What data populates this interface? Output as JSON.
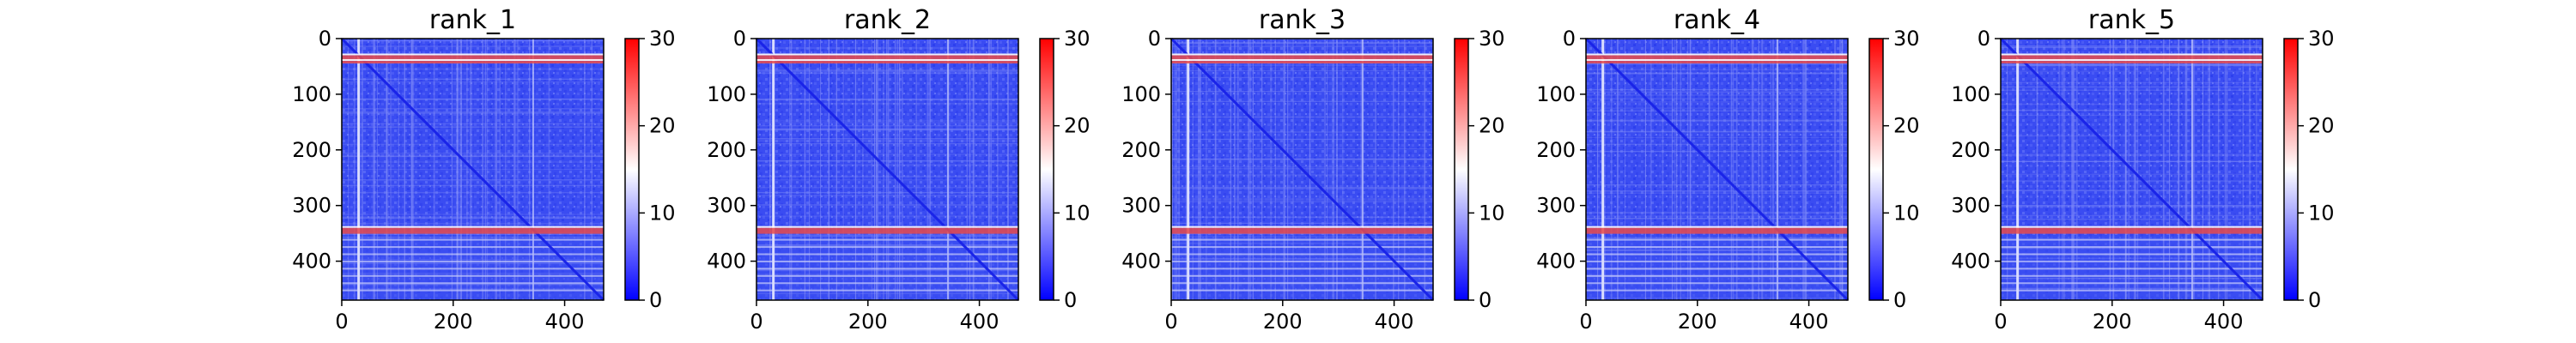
{
  "chart_data": [
    {
      "type": "heatmap",
      "title": "rank_1",
      "x_ticks": [
        0,
        200,
        400
      ],
      "y_ticks": [
        0,
        100,
        200,
        300,
        400
      ],
      "xlim": [
        0,
        470
      ],
      "ylim": [
        470,
        0
      ],
      "colorbar_ticks": [
        0,
        10,
        20,
        30
      ],
      "colorbar_range": [
        0,
        30
      ],
      "colormap": [
        "#0000ff",
        "#ffffff",
        "#ff0000"
      ]
    },
    {
      "type": "heatmap",
      "title": "rank_2",
      "x_ticks": [
        0,
        200,
        400
      ],
      "y_ticks": [
        0,
        100,
        200,
        300,
        400
      ],
      "xlim": [
        0,
        470
      ],
      "ylim": [
        470,
        0
      ],
      "colorbar_ticks": [
        0,
        10,
        20,
        30
      ],
      "colorbar_range": [
        0,
        30
      ],
      "colormap": [
        "#0000ff",
        "#ffffff",
        "#ff0000"
      ]
    },
    {
      "type": "heatmap",
      "title": "rank_3",
      "x_ticks": [
        0,
        200,
        400
      ],
      "y_ticks": [
        0,
        100,
        200,
        300,
        400
      ],
      "xlim": [
        0,
        470
      ],
      "ylim": [
        470,
        0
      ],
      "colorbar_ticks": [
        0,
        10,
        20,
        30
      ],
      "colorbar_range": [
        0,
        30
      ],
      "colormap": [
        "#0000ff",
        "#ffffff",
        "#ff0000"
      ]
    },
    {
      "type": "heatmap",
      "title": "rank_4",
      "x_ticks": [
        0,
        200,
        400
      ],
      "y_ticks": [
        0,
        100,
        200,
        300,
        400
      ],
      "xlim": [
        0,
        470
      ],
      "ylim": [
        470,
        0
      ],
      "colorbar_ticks": [
        0,
        10,
        20,
        30
      ],
      "colorbar_range": [
        0,
        30
      ],
      "colormap": [
        "#0000ff",
        "#ffffff",
        "#ff0000"
      ]
    },
    {
      "type": "heatmap",
      "title": "rank_5",
      "x_ticks": [
        0,
        200,
        400
      ],
      "y_ticks": [
        0,
        100,
        200,
        300,
        400
      ],
      "xlim": [
        0,
        470
      ],
      "ylim": [
        470,
        0
      ],
      "colorbar_ticks": [
        0,
        10,
        20,
        30
      ],
      "colorbar_range": [
        0,
        30
      ],
      "colormap": [
        "#0000ff",
        "#ffffff",
        "#ff0000"
      ]
    }
  ]
}
